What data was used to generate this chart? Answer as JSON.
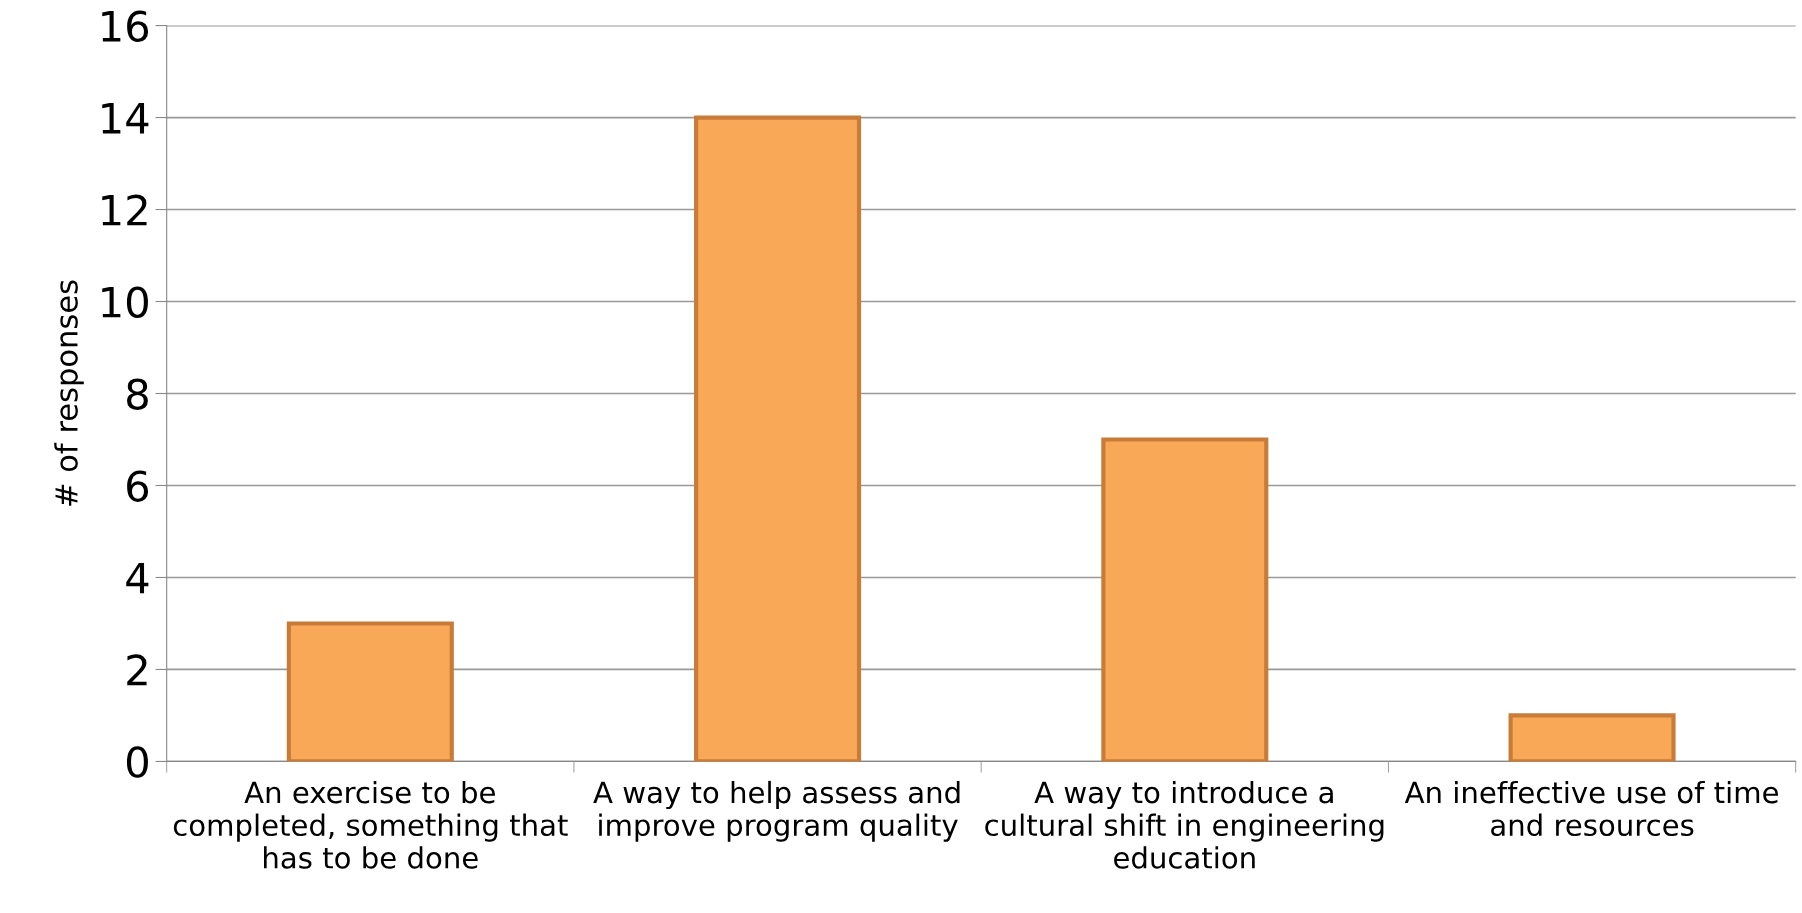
{
  "chart_data": {
    "type": "bar",
    "ylabel": "# of responses",
    "categories": [
      "An exercise to be\ncompleted, something that\nhas to be done",
      "A way to help assess and\nimprove program quality",
      "A way to introduce a\ncultural shift in engineering\neducation",
      "An ineffective use of time\nand resources"
    ],
    "values": [
      3,
      14,
      7,
      1
    ],
    "color": "#f9a857",
    "ylim": [
      0,
      16
    ],
    "yticks": [
      0,
      2,
      4,
      6,
      8,
      10,
      12,
      14,
      16
    ],
    "grid": "y",
    "legend": false
  }
}
